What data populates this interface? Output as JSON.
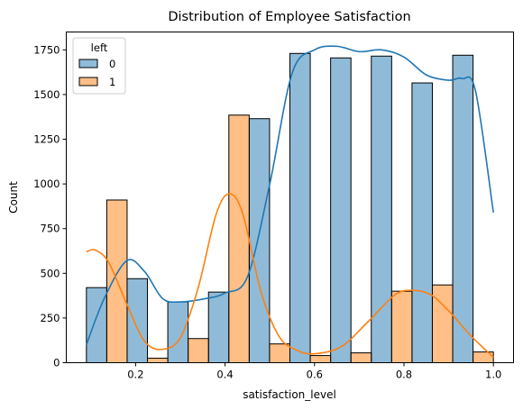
{
  "chart_data": {
    "type": "bar",
    "title": "Distribution of Employee Satisfaction",
    "xlabel": "satisfaction_level",
    "ylabel": "Count",
    "xlim": [
      0.045,
      1.045
    ],
    "ylim": [
      0,
      1850
    ],
    "xticks": [
      0.2,
      0.4,
      0.6,
      0.8,
      1.0
    ],
    "xtick_labels": [
      "0.2",
      "0.4",
      "0.6",
      "0.8",
      "1.0"
    ],
    "yticks": [
      0,
      250,
      500,
      750,
      1000,
      1250,
      1500,
      1750
    ],
    "ytick_labels": [
      "0",
      "250",
      "500",
      "750",
      "1000",
      "1250",
      "1500",
      "1750"
    ],
    "grid": false,
    "legend": {
      "title": "left",
      "position": "top-left"
    },
    "bin_edges": [
      0.09,
      0.181,
      0.272,
      0.363,
      0.454,
      0.545,
      0.636,
      0.727,
      0.818,
      0.909,
      1.0
    ],
    "series": [
      {
        "name": "0",
        "color": "#1f77b4",
        "values": [
          420,
          470,
          340,
          395,
          1365,
          1730,
          1705,
          1715,
          1565,
          1720
        ],
        "kde": [
          [
            0.09,
            100
          ],
          [
            0.13,
            360
          ],
          [
            0.18,
            570
          ],
          [
            0.22,
            510
          ],
          [
            0.26,
            360
          ],
          [
            0.3,
            340
          ],
          [
            0.36,
            360
          ],
          [
            0.4,
            390
          ],
          [
            0.45,
            480
          ],
          [
            0.5,
            1000
          ],
          [
            0.55,
            1620
          ],
          [
            0.6,
            1750
          ],
          [
            0.65,
            1770
          ],
          [
            0.7,
            1740
          ],
          [
            0.75,
            1750
          ],
          [
            0.8,
            1710
          ],
          [
            0.85,
            1610
          ],
          [
            0.9,
            1580
          ],
          [
            0.93,
            1590
          ],
          [
            0.96,
            1520
          ],
          [
            1.0,
            840
          ]
        ]
      },
      {
        "name": "1",
        "color": "#ff7f0e",
        "values": [
          910,
          25,
          135,
          1385,
          105,
          40,
          55,
          400,
          435,
          60
        ],
        "kde": [
          [
            0.09,
            620
          ],
          [
            0.11,
            630
          ],
          [
            0.14,
            560
          ],
          [
            0.18,
            330
          ],
          [
            0.22,
            120
          ],
          [
            0.26,
            75
          ],
          [
            0.3,
            140
          ],
          [
            0.34,
            420
          ],
          [
            0.38,
            830
          ],
          [
            0.41,
            945
          ],
          [
            0.44,
            830
          ],
          [
            0.48,
            400
          ],
          [
            0.52,
            150
          ],
          [
            0.56,
            70
          ],
          [
            0.6,
            50
          ],
          [
            0.66,
            90
          ],
          [
            0.72,
            230
          ],
          [
            0.78,
            380
          ],
          [
            0.82,
            405
          ],
          [
            0.86,
            380
          ],
          [
            0.9,
            290
          ],
          [
            0.95,
            150
          ],
          [
            1.0,
            30
          ]
        ]
      }
    ]
  }
}
